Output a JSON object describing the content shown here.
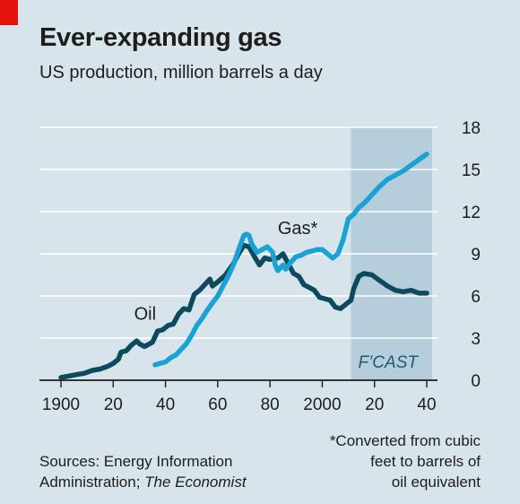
{
  "chart_data": {
    "type": "line",
    "title": "Ever-expanding gas",
    "subtitle": "US production, million barrels a day",
    "xlim": [
      1900,
      2040
    ],
    "ylim": [
      0,
      18
    ],
    "x_ticks": [
      1900,
      1920,
      1940,
      1960,
      1980,
      2000,
      2020,
      2040
    ],
    "x_tick_labels": [
      "1900",
      "20",
      "40",
      "60",
      "80",
      "2000",
      "20",
      "40"
    ],
    "y_ticks": [
      0,
      3,
      6,
      9,
      12,
      15,
      18
    ],
    "y_tick_labels": [
      "0",
      "3",
      "6",
      "9",
      "12",
      "15",
      "18"
    ],
    "forecast_range": [
      2011,
      2040
    ],
    "forecast_label": "F’CAST",
    "series": [
      {
        "name": "Oil",
        "color": "#0d4a5e",
        "points": [
          [
            1900,
            0.2
          ],
          [
            1903,
            0.3
          ],
          [
            1906,
            0.4
          ],
          [
            1909,
            0.5
          ],
          [
            1912,
            0.7
          ],
          [
            1915,
            0.8
          ],
          [
            1918,
            1.0
          ],
          [
            1920,
            1.2
          ],
          [
            1922,
            1.5
          ],
          [
            1923,
            2.0
          ],
          [
            1925,
            2.1
          ],
          [
            1927,
            2.5
          ],
          [
            1929,
            2.8
          ],
          [
            1930,
            2.6
          ],
          [
            1932,
            2.4
          ],
          [
            1935,
            2.7
          ],
          [
            1937,
            3.5
          ],
          [
            1939,
            3.6
          ],
          [
            1941,
            3.9
          ],
          [
            1943,
            4.0
          ],
          [
            1945,
            4.7
          ],
          [
            1947,
            5.1
          ],
          [
            1949,
            5.0
          ],
          [
            1951,
            6.1
          ],
          [
            1953,
            6.4
          ],
          [
            1955,
            6.8
          ],
          [
            1957,
            7.2
          ],
          [
            1958,
            6.7
          ],
          [
            1960,
            7.0
          ],
          [
            1963,
            7.5
          ],
          [
            1966,
            8.3
          ],
          [
            1968,
            9.0
          ],
          [
            1970,
            9.6
          ],
          [
            1972,
            9.5
          ],
          [
            1974,
            8.8
          ],
          [
            1976,
            8.2
          ],
          [
            1978,
            8.7
          ],
          [
            1980,
            8.6
          ],
          [
            1983,
            8.7
          ],
          [
            1985,
            9.0
          ],
          [
            1987,
            8.3
          ],
          [
            1989,
            7.6
          ],
          [
            1991,
            7.4
          ],
          [
            1993,
            6.8
          ],
          [
            1995,
            6.6
          ],
          [
            1997,
            6.4
          ],
          [
            1999,
            5.9
          ],
          [
            2001,
            5.8
          ],
          [
            2003,
            5.7
          ],
          [
            2005,
            5.2
          ],
          [
            2007,
            5.1
          ],
          [
            2009,
            5.4
          ],
          [
            2011,
            5.7
          ],
          [
            2012,
            6.5
          ],
          [
            2014,
            7.4
          ],
          [
            2016,
            7.6
          ],
          [
            2019,
            7.5
          ],
          [
            2022,
            7.1
          ],
          [
            2025,
            6.7
          ],
          [
            2028,
            6.4
          ],
          [
            2031,
            6.3
          ],
          [
            2034,
            6.4
          ],
          [
            2037,
            6.2
          ],
          [
            2040,
            6.2
          ]
        ]
      },
      {
        "name": "Gas*",
        "color": "#1aa2d4",
        "points": [
          [
            1936,
            1.1
          ],
          [
            1938,
            1.2
          ],
          [
            1940,
            1.3
          ],
          [
            1942,
            1.6
          ],
          [
            1944,
            1.8
          ],
          [
            1946,
            2.2
          ],
          [
            1948,
            2.6
          ],
          [
            1950,
            3.2
          ],
          [
            1952,
            3.9
          ],
          [
            1954,
            4.4
          ],
          [
            1956,
            5.0
          ],
          [
            1958,
            5.5
          ],
          [
            1960,
            6.0
          ],
          [
            1962,
            6.7
          ],
          [
            1964,
            7.4
          ],
          [
            1966,
            8.2
          ],
          [
            1968,
            9.3
          ],
          [
            1970,
            10.3
          ],
          [
            1971,
            10.4
          ],
          [
            1972,
            10.3
          ],
          [
            1973,
            9.7
          ],
          [
            1975,
            9.1
          ],
          [
            1977,
            9.3
          ],
          [
            1979,
            9.5
          ],
          [
            1981,
            9.1
          ],
          [
            1982,
            8.2
          ],
          [
            1983,
            7.8
          ],
          [
            1985,
            8.2
          ],
          [
            1986,
            7.9
          ],
          [
            1988,
            8.4
          ],
          [
            1990,
            8.8
          ],
          [
            1992,
            8.9
          ],
          [
            1994,
            9.1
          ],
          [
            1996,
            9.2
          ],
          [
            1998,
            9.3
          ],
          [
            2000,
            9.3
          ],
          [
            2002,
            9.0
          ],
          [
            2004,
            8.7
          ],
          [
            2006,
            9.0
          ],
          [
            2008,
            10.0
          ],
          [
            2010,
            11.5
          ],
          [
            2012,
            11.8
          ],
          [
            2014,
            12.3
          ],
          [
            2016,
            12.6
          ],
          [
            2019,
            13.2
          ],
          [
            2022,
            13.8
          ],
          [
            2025,
            14.3
          ],
          [
            2028,
            14.6
          ],
          [
            2031,
            14.9
          ],
          [
            2034,
            15.3
          ],
          [
            2037,
            15.7
          ],
          [
            2040,
            16.1
          ]
        ]
      }
    ],
    "annotations": [
      {
        "text": "Oil",
        "series": "Oil"
      },
      {
        "text": "Gas*",
        "series": "Gas*"
      }
    ]
  },
  "footer": {
    "source_line1": "Sources: Energy Information",
    "source_line2": "Administration;",
    "source_italic": "The Economist",
    "footnote_line1": "*Converted from cubic",
    "footnote_line2": "feet to barrels of",
    "footnote_line3": "oil equivalent"
  },
  "colors": {
    "background": "#d8e4ec",
    "forecast_band": "#b6cddb",
    "gridline": "#ffffff",
    "brand_red": "#e3120b"
  }
}
